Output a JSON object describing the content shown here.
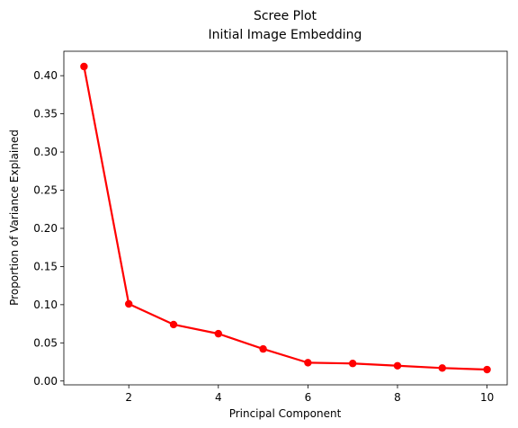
{
  "chart_data": {
    "type": "line",
    "title": "Scree Plot",
    "subtitle": "Initial Image Embedding",
    "xlabel": "Principal Component",
    "ylabel": "Proportion of Variance Explained",
    "xlim": [
      0.55,
      10.45
    ],
    "ylim": [
      -0.005,
      0.432
    ],
    "xticks": [
      2,
      4,
      6,
      8,
      10
    ],
    "yticks": [
      0.0,
      0.05,
      0.1,
      0.15,
      0.2,
      0.25,
      0.3,
      0.35,
      0.4
    ],
    "grid": false,
    "series": [
      {
        "color": "#ff0000",
        "marker": "circle",
        "x": [
          1,
          2,
          3,
          4,
          5,
          6,
          7,
          8,
          9,
          10
        ],
        "y": [
          0.412,
          0.101,
          0.074,
          0.062,
          0.042,
          0.024,
          0.023,
          0.02,
          0.017,
          0.015
        ]
      }
    ]
  }
}
